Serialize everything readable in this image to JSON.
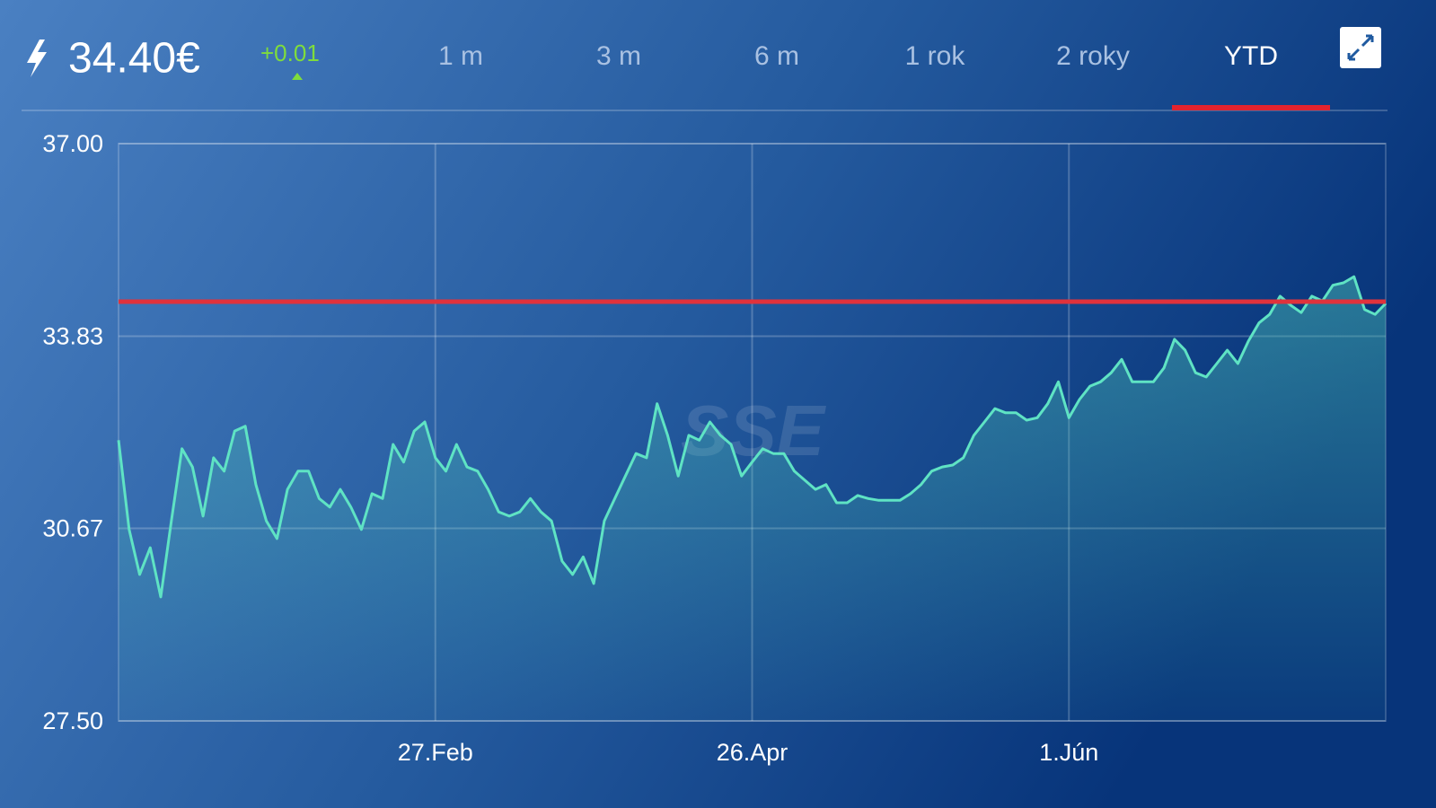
{
  "header": {
    "price": "34.40€",
    "change": "+0.01",
    "tabs": [
      "1 m",
      "3 m",
      "6 m",
      "1 rok",
      "2 roky",
      "YTD"
    ],
    "active_tab": 5
  },
  "chart_data": {
    "type": "line",
    "watermark": "SSE",
    "color": "#5fe3c4",
    "reference_line": 34.4,
    "reference_color": "#e0323c",
    "grid": true,
    "ylim": [
      27.5,
      37
    ],
    "yticks": [
      {
        "value": 37,
        "label": "37.00"
      },
      {
        "value": 33.83,
        "label": "33.83"
      },
      {
        "value": 30.67,
        "label": "30.67"
      },
      {
        "value": 27.5,
        "label": "27.50"
      }
    ],
    "categories": [
      null,
      null,
      null,
      null,
      null,
      null,
      null,
      null,
      null,
      null,
      null,
      null,
      null,
      null,
      null,
      null,
      null,
      null,
      null,
      null,
      null,
      null,
      null,
      null,
      null,
      null,
      null,
      null,
      null,
      null,
      "27.Feb",
      null,
      null,
      null,
      null,
      null,
      null,
      null,
      null,
      null,
      null,
      null,
      null,
      null,
      null,
      null,
      null,
      null,
      null,
      null,
      null,
      null,
      null,
      null,
      null,
      null,
      null,
      null,
      null,
      null,
      "26.Apr",
      null,
      null,
      null,
      null,
      null,
      null,
      null,
      null,
      null,
      null,
      null,
      null,
      null,
      null,
      null,
      null,
      null,
      null,
      null,
      null,
      null,
      null,
      null,
      null,
      null,
      null,
      null,
      null,
      null,
      "1.Jún",
      null,
      null,
      null,
      null,
      null,
      null,
      null,
      null,
      null,
      null,
      null,
      null,
      null,
      null,
      null,
      null,
      null,
      null,
      null,
      null,
      null,
      null,
      null,
      null,
      null,
      null,
      null,
      null,
      null,
      null
    ],
    "values": [
      32.12,
      30.65,
      29.91,
      30.35,
      29.54,
      30.79,
      31.98,
      31.68,
      30.87,
      31.83,
      31.61,
      32.27,
      32.35,
      31.39,
      30.79,
      30.5,
      31.31,
      31.61,
      31.61,
      31.16,
      31.02,
      31.31,
      31.02,
      30.65,
      31.24,
      31.16,
      32.05,
      31.76,
      32.27,
      32.42,
      31.83,
      31.61,
      32.05,
      31.68,
      31.61,
      31.31,
      30.94,
      30.87,
      30.94,
      31.16,
      30.94,
      30.79,
      30.13,
      29.91,
      30.2,
      29.76,
      30.79,
      31.16,
      31.53,
      31.9,
      31.83,
      32.72,
      32.2,
      31.53,
      32.2,
      32.12,
      32.42,
      32.2,
      32.05,
      31.53,
      31.76,
      31.98,
      31.9,
      31.9,
      31.61,
      31.46,
      31.31,
      31.39,
      31.09,
      31.09,
      31.21,
      31.16,
      31.13,
      31.13,
      31.13,
      31.24,
      31.39,
      31.61,
      31.68,
      31.71,
      31.83,
      32.2,
      32.42,
      32.64,
      32.57,
      32.57,
      32.45,
      32.49,
      32.72,
      33.08,
      32.49,
      32.79,
      33.01,
      33.08,
      33.23,
      33.45,
      33.08,
      33.08,
      33.08,
      33.31,
      33.78,
      33.6,
      33.23,
      33.16,
      33.38,
      33.6,
      33.38,
      33.75,
      34.05,
      34.19,
      34.49,
      34.34,
      34.22,
      34.49,
      34.41,
      34.67,
      34.71,
      34.81,
      34.27,
      34.19,
      34.37
    ]
  }
}
